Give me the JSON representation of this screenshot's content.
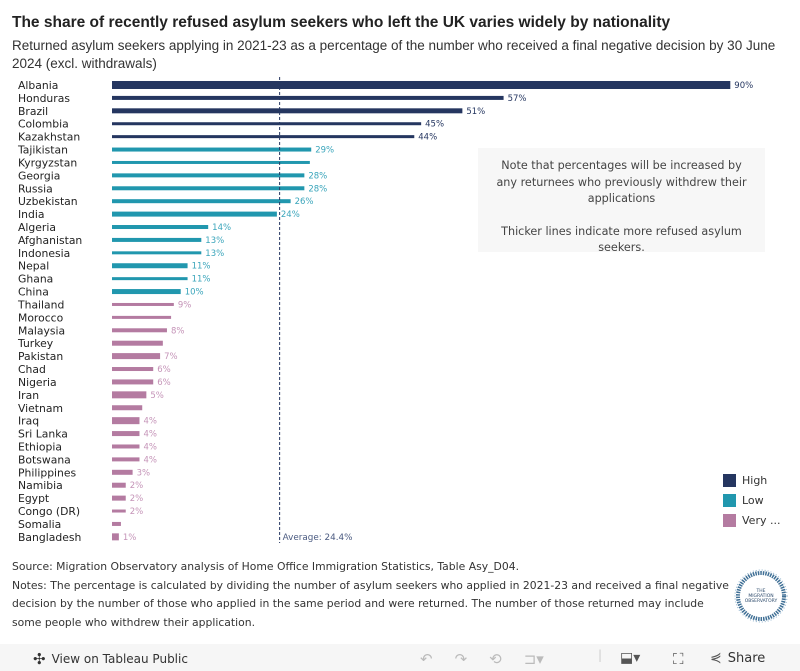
{
  "title": "The share of recently refused asylum seekers who left the UK varies widely by nationality",
  "subtitle": "Returned asylum seekers applying in 2021-23 as a percentage of the number who received a final negative decision by 30 June 2024 (excl. withdrawals)",
  "note": {
    "line1": "Note that percentages will be increased by any returnees who previously withdrew their applications",
    "line2": "Thicker lines indicate more refused asylum seekers."
  },
  "legend": [
    {
      "label": "High",
      "color": "#253660"
    },
    {
      "label": "Low",
      "color": "#2197ae"
    },
    {
      "label": "Very ...",
      "color": "#b47ba1"
    }
  ],
  "chart_data": {
    "type": "bar",
    "orientation": "horizontal",
    "unit": "%",
    "reference_line": {
      "label": "Average: 24.4%",
      "value": 24.4
    },
    "categories": [
      "Albania",
      "Honduras",
      "Brazil",
      "Colombia",
      "Kazakhstan",
      "Tajikistan",
      "Kyrgyzstan",
      "Georgia",
      "Russia",
      "Uzbekistan",
      "India",
      "Algeria",
      "Afghanistan",
      "Indonesia",
      "Nepal",
      "Ghana",
      "China",
      "Thailand",
      "Morocco",
      "Malaysia",
      "Turkey",
      "Pakistan",
      "Chad",
      "Nigeria",
      "Iran",
      "Vietnam",
      "Iraq",
      "Sri Lanka",
      "Ethiopia",
      "Botswana",
      "Philippines",
      "Namibia",
      "Egypt",
      "Congo (DR)",
      "Somalia",
      "Bangladesh"
    ],
    "values": [
      90,
      57,
      51,
      45,
      44,
      29,
      28.8,
      28,
      28,
      26,
      24,
      14,
      13,
      13,
      11,
      11,
      10,
      9,
      8.6,
      8,
      7.4,
      7,
      6,
      6,
      5,
      4.4,
      4,
      4,
      4,
      4,
      3,
      2,
      2,
      2,
      1.3,
      1
    ],
    "data_labels": [
      "90%",
      "57%",
      "51%",
      "45%",
      "44%",
      "29%",
      "",
      "28%",
      "28%",
      "26%",
      "24%",
      "14%",
      "13%",
      "13%",
      "11%",
      "11%",
      "10%",
      "9%",
      "",
      "8%",
      "",
      "7%",
      "6%",
      "6%",
      "5%",
      "",
      "4%",
      "4%",
      "4%",
      "4%",
      "3%",
      "2%",
      "2%",
      "2%",
      "",
      "1%"
    ],
    "groups": [
      "High",
      "High",
      "High",
      "High",
      "High",
      "Low",
      "Low",
      "Low",
      "Low",
      "Low",
      "Low",
      "Low",
      "Low",
      "Low",
      "Low",
      "Low",
      "Low",
      "Very ...",
      "Very ...",
      "Very ...",
      "Very ...",
      "Very ...",
      "Very ...",
      "Very ...",
      "Very ...",
      "Very ...",
      "Very ...",
      "Very ...",
      "Very ...",
      "Very ...",
      "Very ...",
      "Very ...",
      "Very ...",
      "Very ...",
      "Very ...",
      "Very ..."
    ],
    "xlim": [
      0,
      92
    ]
  },
  "footer": {
    "source": "Source: Migration Observatory analysis of Home Office Immigration Statistics, Table Asy_D04.",
    "notes": "Notes: The percentage is calculated by dividing the number of asylum seekers who applied in 2021-23 and received a final negative decision by the number of those who applied in the same period and were returned. The number of those returned may include some people who withdrew their application."
  },
  "logo": "THE MIGRATION OBSERVATORY",
  "toolbar": {
    "view_label": "View on Tableau Public",
    "share_label": "Share"
  }
}
